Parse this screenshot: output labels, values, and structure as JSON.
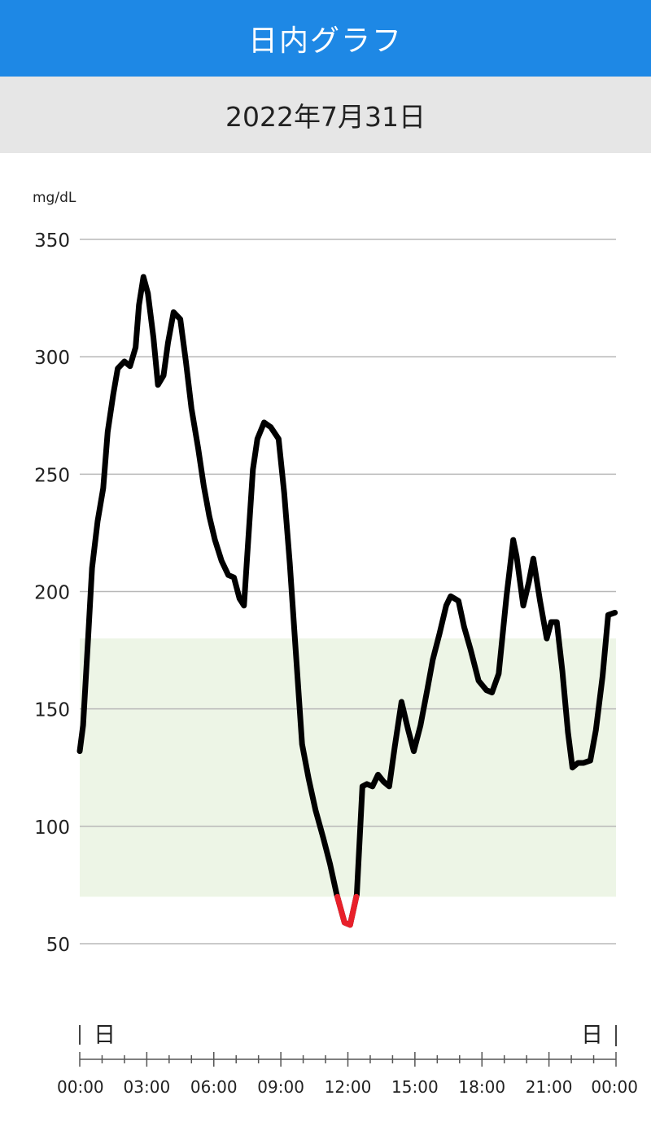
{
  "header": {
    "title": "日内グラフ"
  },
  "date_bar": {
    "date": "2022年7月31日"
  },
  "chart_data": {
    "type": "line",
    "ylabel": "mg/dL",
    "ylim": [
      50,
      350
    ],
    "y_ticks": [
      350,
      300,
      250,
      200,
      150,
      100,
      50
    ],
    "x_ticks": [
      "00:00",
      "03:00",
      "06:00",
      "09:00",
      "12:00",
      "15:00",
      "18:00",
      "21:00",
      "00:00"
    ],
    "x_range_hours": [
      0,
      24
    ],
    "target_range": [
      70,
      180
    ],
    "day_markers": {
      "start": "日",
      "end": "日"
    },
    "low_threshold": 70,
    "colors": {
      "line": "#000000",
      "low": "#e8202a",
      "target_band": "#edf5e6",
      "grid": "#b8b8b8"
    },
    "series": [
      {
        "x": [
          0.0,
          0.15,
          0.35,
          0.55,
          0.8,
          1.05,
          1.25,
          1.5,
          1.7,
          2.0,
          2.25,
          2.5,
          2.65,
          2.85,
          3.05,
          3.3,
          3.5,
          3.75,
          3.95,
          4.2,
          4.5,
          4.75,
          5.0,
          5.3,
          5.55,
          5.8,
          6.05,
          6.35,
          6.65,
          6.9,
          7.15,
          7.35,
          7.5,
          7.75,
          7.95,
          8.25,
          8.55,
          8.9,
          9.15,
          9.4,
          9.65,
          9.95,
          10.25,
          10.55,
          10.9,
          11.2,
          11.5,
          11.85,
          12.1,
          12.4,
          12.65,
          12.85,
          13.1,
          13.35,
          13.6,
          13.85,
          14.1,
          14.4,
          14.7,
          14.95,
          15.25,
          15.55,
          15.8,
          16.1,
          16.4,
          16.6,
          16.95,
          17.2,
          17.5,
          17.85,
          18.2,
          18.45,
          18.75,
          19.1,
          19.4,
          19.55,
          19.85,
          20.1,
          20.3,
          20.6,
          20.9,
          21.1,
          21.35,
          21.6,
          21.85,
          22.05,
          22.3,
          22.55,
          22.85,
          23.1,
          23.4,
          23.65,
          23.95
        ],
        "y": [
          132,
          143,
          176,
          210,
          230,
          244,
          268,
          284,
          295,
          298,
          296,
          304,
          322,
          334,
          327,
          308,
          288,
          292,
          306,
          319,
          316,
          298,
          278,
          261,
          245,
          232,
          222,
          213,
          207,
          206,
          197,
          194,
          216,
          252,
          265,
          272,
          270,
          265,
          242,
          212,
          177,
          135,
          120,
          107,
          95,
          84,
          71,
          59,
          58,
          71,
          117,
          118,
          117,
          122,
          119,
          117,
          134,
          153,
          141,
          132,
          143,
          158,
          171,
          182,
          194,
          198,
          196,
          185,
          175,
          162,
          158,
          157,
          165,
          198,
          222,
          215,
          194,
          204,
          214,
          196,
          180,
          187,
          187,
          166,
          140,
          125,
          127,
          127,
          128,
          141,
          164,
          190,
          191
        ]
      }
    ]
  }
}
